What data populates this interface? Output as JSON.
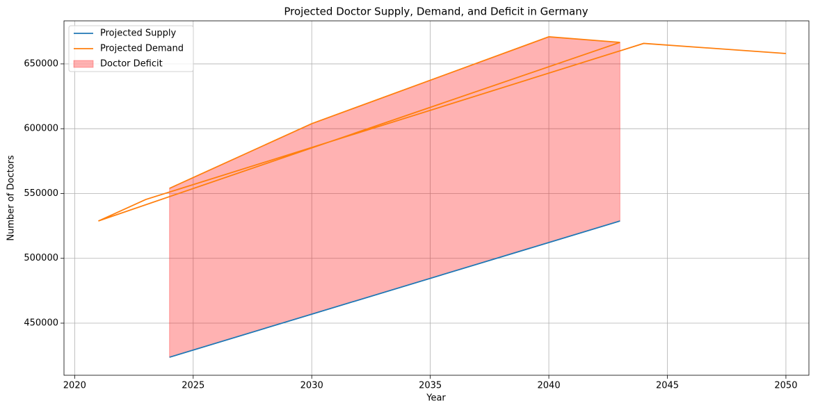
{
  "chart_data": {
    "type": "line",
    "title": "Projected Doctor Supply, Demand, and Deficit in Germany",
    "x_label": "Year",
    "y_label": "Number of Doctors",
    "series": [
      {
        "name": "Projected Supply",
        "color": "#1f77b4",
        "x": [
          2024,
          2030,
          2040,
          2043
        ],
        "values": [
          423700,
          456900,
          512200,
          528800
        ]
      },
      {
        "name": "Projected Demand",
        "color": "#ff7f0e",
        "x": [
          2024,
          2030,
          2040,
          2043,
          2021,
          2023,
          2044,
          2050
        ],
        "values": [
          554000,
          603900,
          670900,
          666600,
          528800,
          545400,
          665800,
          658000
        ]
      }
    ],
    "fill": {
      "name": "Doctor Deficit",
      "color": "#ff0000",
      "alpha": 0.3
    },
    "xlim": [
      2019.55,
      2050.97
    ],
    "ylim": [
      409800,
      683200
    ],
    "xticks": [
      2020,
      2025,
      2030,
      2035,
      2040,
      2045,
      2050
    ],
    "yticks": [
      450000,
      500000,
      550000,
      600000,
      650000
    ],
    "grid": true,
    "legend": "upper-left"
  }
}
